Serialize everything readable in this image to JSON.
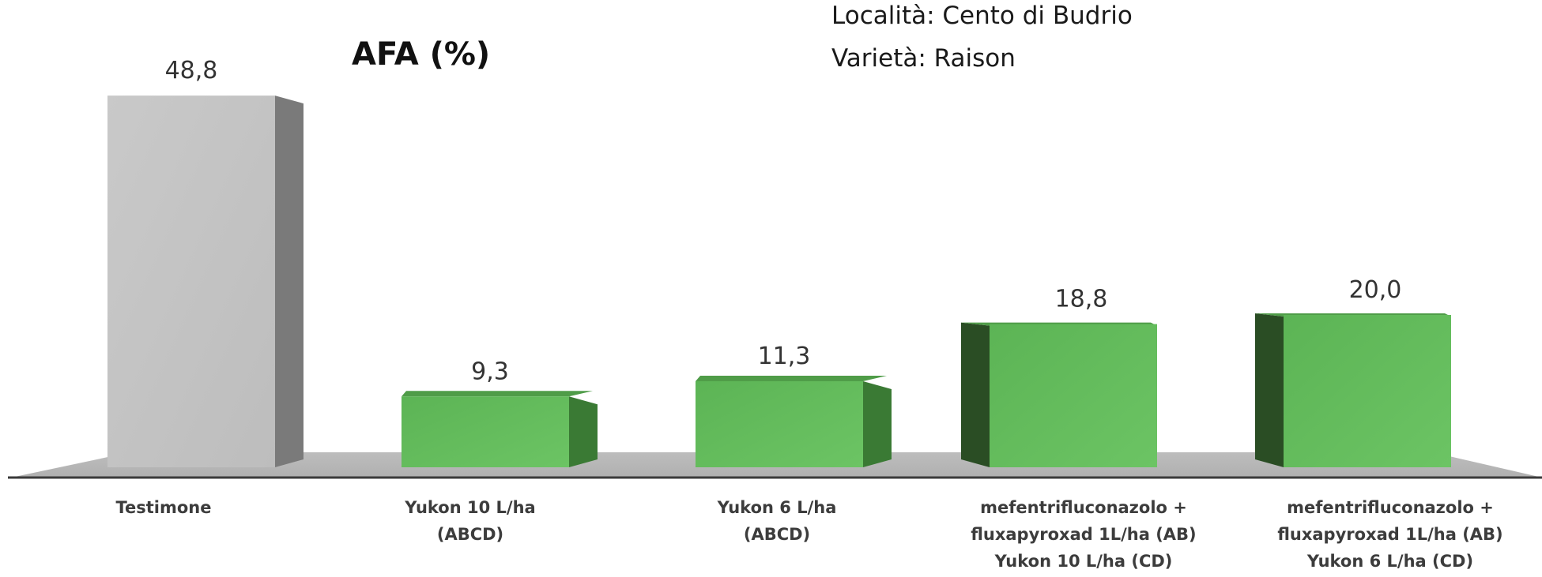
{
  "info": {
    "location": "Località: Cento di Budrio",
    "variety": "Varietà: Raison"
  },
  "chart_data": {
    "type": "bar",
    "title": "AFA (%)",
    "xlabel": "",
    "ylabel": "",
    "ylim": [
      0,
      50
    ],
    "grid": false,
    "legend": "none",
    "categories": [
      "Testimone",
      "Yukon 10 L/ha\n(ABCD)",
      "Yukon 6 L/ha\n(ABCD)",
      "mefentrifluconazolo +\nfluxapyroxad  1L/ha (AB)\nYukon 10 L/ha (CD)",
      "mefentrifluconazolo +\nfluxapyroxad  1L/ha (AB)\nYukon 6 L/ha (CD)"
    ],
    "values": [
      48.8,
      9.3,
      11.3,
      18.8,
      20.0
    ],
    "value_labels": [
      "48,8",
      "9,3",
      "11,3",
      "18,8",
      "20,0"
    ],
    "colors": {
      "control": "#c4c4c4",
      "treatment": "#62bc5c",
      "floor": "#b5b5b5",
      "axis": "#3a3a3a"
    }
  }
}
